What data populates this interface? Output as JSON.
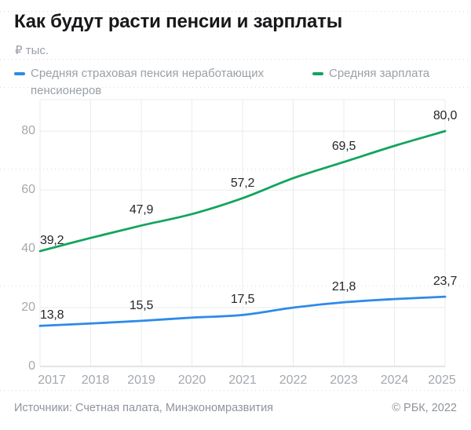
{
  "title": "Как будут расти пенсии и зарплаты",
  "unit_label": "₽ тыс.",
  "footer": {
    "sources": "Источники: Счетная палата, Минэкономразвития",
    "copyright": "© РБК, 2022"
  },
  "colors": {
    "pension_line": "#2e8ae9",
    "salary_line": "#13a45e",
    "grid": "#eaebed",
    "axis": "#c8cacd",
    "tick_text": "#a4a8ad",
    "muted_text": "#9aa0a6",
    "value_text": "#26272b",
    "dotted_row": "#d9dbde"
  },
  "chart_data": {
    "type": "line",
    "x": [
      2017,
      2018,
      2019,
      2020,
      2021,
      2022,
      2023,
      2024,
      2025
    ],
    "series": [
      {
        "name": "Средняя страховая пенсия неработающих пенсионеров",
        "color_key": "pension_line",
        "values": [
          13.8,
          14.6,
          15.5,
          16.6,
          17.5,
          20.0,
          21.8,
          22.9,
          23.7
        ],
        "labeled_values_text": [
          "13,8",
          "15,5",
          "17,5",
          "21,8",
          "23,7"
        ]
      },
      {
        "name": "Средняя зарплата",
        "color_key": "salary_line",
        "values": [
          39.2,
          43.7,
          47.9,
          51.8,
          57.2,
          64.0,
          69.5,
          75.0,
          80.0
        ],
        "labeled_values_text": [
          "39,2",
          "47,9",
          "57,2",
          "69,5",
          "80,0"
        ]
      }
    ],
    "labeled_x": [
      2017,
      2019,
      2021,
      2023,
      2025
    ],
    "y_ticks": [
      0,
      20,
      40,
      60,
      80
    ],
    "ylim": [
      0,
      90.7
    ],
    "grid": true,
    "legend_position": "top",
    "decimal_separator": ","
  }
}
